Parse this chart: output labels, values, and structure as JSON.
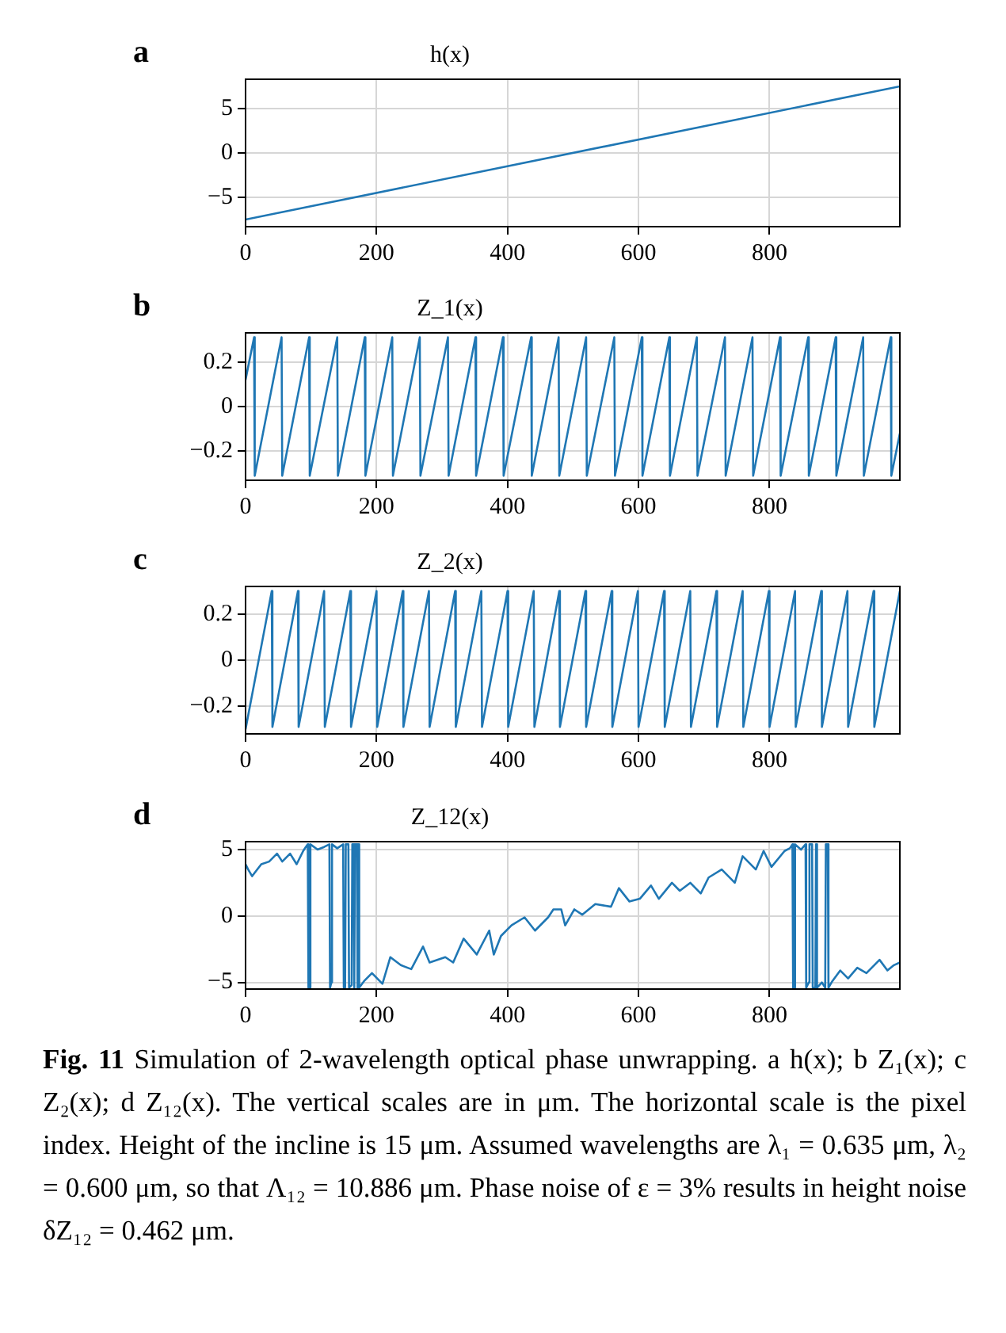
{
  "chart_data": [
    {
      "type": "line",
      "title": "h(x)",
      "annotations": [
        "a"
      ],
      "x": [
        0,
        999
      ],
      "values": [
        -7.5,
        7.5
      ],
      "color": "#1f77b4",
      "marker": "none",
      "xlim": [
        0,
        999
      ],
      "xticks": [
        0,
        200,
        400,
        600,
        800
      ],
      "ylim": [
        -8.3,
        8.3
      ],
      "yticks": [
        -5,
        0,
        5
      ],
      "grid": true
    },
    {
      "type": "line",
      "title": "Z_1(x)",
      "annotations": [
        "b"
      ],
      "x": [
        0,
        13,
        14,
        55,
        56,
        97,
        98,
        140,
        141,
        182,
        183,
        224,
        225,
        266,
        267,
        309,
        310,
        351,
        352,
        393,
        394,
        436,
        437,
        478,
        479,
        520,
        521,
        563,
        564,
        605,
        606,
        647,
        648,
        689,
        690,
        732,
        733,
        774,
        775,
        816,
        817,
        859,
        860,
        901,
        902,
        943,
        944,
        985,
        986,
        999
      ],
      "values": [
        0.12,
        0.31,
        -0.31,
        0.31,
        -0.31,
        0.31,
        -0.31,
        0.31,
        -0.31,
        0.31,
        -0.31,
        0.31,
        -0.31,
        0.31,
        -0.31,
        0.31,
        -0.31,
        0.31,
        -0.31,
        0.31,
        -0.31,
        0.31,
        -0.31,
        0.31,
        -0.31,
        0.31,
        -0.31,
        0.31,
        -0.31,
        0.31,
        -0.31,
        0.31,
        -0.31,
        0.31,
        -0.31,
        0.31,
        -0.31,
        0.31,
        -0.31,
        0.31,
        -0.31,
        0.31,
        -0.31,
        0.31,
        -0.31,
        0.31,
        -0.31,
        0.31,
        -0.31,
        -0.12
      ],
      "color": "#1f77b4",
      "marker": "none",
      "xlim": [
        0,
        999
      ],
      "xticks": [
        0,
        200,
        400,
        600,
        800
      ],
      "ylim": [
        -0.33,
        0.33
      ],
      "yticks": [
        -0.2,
        0,
        0.2
      ],
      "grid": true
    },
    {
      "type": "line",
      "title": "Z_2(x)",
      "annotations": [
        "c"
      ],
      "x": [
        0,
        40,
        41,
        80,
        81,
        120,
        121,
        160,
        161,
        200,
        201,
        240,
        241,
        280,
        281,
        320,
        321,
        360,
        361,
        400,
        401,
        440,
        441,
        479,
        480,
        519,
        520,
        559,
        560,
        599,
        600,
        639,
        640,
        679,
        680,
        719,
        720,
        759,
        760,
        799,
        800,
        839,
        840,
        879,
        880,
        919,
        920,
        959,
        960,
        999
      ],
      "values": [
        -0.3,
        0.3,
        -0.29,
        0.3,
        -0.29,
        0.3,
        -0.29,
        0.3,
        -0.29,
        0.3,
        -0.29,
        0.3,
        -0.29,
        0.3,
        -0.29,
        0.3,
        -0.29,
        0.3,
        -0.29,
        0.3,
        -0.29,
        0.3,
        -0.29,
        0.3,
        -0.29,
        0.3,
        -0.29,
        0.3,
        -0.29,
        0.3,
        -0.29,
        0.3,
        -0.29,
        0.3,
        -0.29,
        0.3,
        -0.29,
        0.3,
        -0.29,
        0.3,
        -0.29,
        0.3,
        -0.29,
        0.3,
        -0.29,
        0.3,
        -0.29,
        0.3,
        -0.29,
        0.3
      ],
      "color": "#1f77b4",
      "marker": "none",
      "xlim": [
        0,
        999
      ],
      "xticks": [
        0,
        200,
        400,
        600,
        800
      ],
      "ylim": [
        -0.32,
        0.32
      ],
      "yticks": [
        -0.2,
        0,
        0.2
      ],
      "grid": true
    },
    {
      "type": "line",
      "title": "Z_12(x)",
      "annotations": [
        "d",
        "Fig. 11",
        "Simulation of 2-wavelength optical phase unwrapping. a h(x); b Z₁(x); c Z₂(x); d Z₁₂(x). The vertical scales are in μm. The horizontal scale is the pixel index. Height of the incline is 15 μm. Assumed wavelengths are λ₁ = 0.635 μm, λ₂ = 0.600 μm, so that Λ₁₂ = 10.886 μm. Phase noise of ε = 3% results in height noise δZ₁₂ = 0.462 μm."
      ],
      "x": [
        0,
        4,
        10,
        24,
        36,
        48,
        56,
        68,
        78,
        88,
        92,
        95,
        96,
        98,
        99,
        110,
        120,
        128,
        129,
        131,
        132,
        140,
        149,
        150,
        152,
        153,
        157,
        158,
        162,
        163,
        165,
        166,
        167,
        170,
        171,
        172,
        173,
        174,
        181,
        193,
        209,
        221,
        237,
        253,
        271,
        281,
        305,
        317,
        333,
        353,
        372,
        379,
        390,
        406,
        426,
        442,
        462,
        470,
        482,
        488,
        502,
        514,
        534,
        558,
        570,
        586,
        602,
        619,
        631,
        651,
        663,
        679,
        695,
        707,
        727,
        747,
        759,
        779,
        791,
        803,
        823,
        831,
        835,
        836,
        838,
        839,
        848,
        855,
        856,
        860,
        861,
        865,
        866,
        870,
        871,
        872,
        873,
        880,
        885,
        886,
        889,
        890,
        896,
        908,
        920,
        934,
        948,
        968,
        980,
        990,
        999
      ],
      "values": [
        3.9,
        3.5,
        3.0,
        3.9,
        4.1,
        4.7,
        4.1,
        4.7,
        3.9,
        4.9,
        5.2,
        5.4,
        -5.4,
        -5.4,
        5.4,
        5.0,
        5.2,
        5.4,
        -5.4,
        -5.0,
        5.4,
        5.1,
        5.4,
        -5.4,
        -5.0,
        5.4,
        5.4,
        -5.4,
        -5.2,
        5.4,
        5.4,
        -5.4,
        5.4,
        5.4,
        -5.4,
        5.4,
        5.4,
        -5.4,
        -4.9,
        -4.3,
        -5.1,
        -3.1,
        -3.7,
        -4.0,
        -2.3,
        -3.5,
        -3.1,
        -3.5,
        -1.7,
        -2.9,
        -1.1,
        -2.9,
        -1.5,
        -0.7,
        -0.1,
        -1.1,
        -0.1,
        0.5,
        0.5,
        -0.7,
        0.5,
        0.1,
        0.9,
        0.7,
        2.1,
        1.1,
        1.3,
        2.3,
        1.3,
        2.5,
        1.9,
        2.5,
        1.7,
        2.9,
        3.5,
        2.5,
        4.5,
        3.5,
        4.9,
        3.7,
        4.9,
        5.1,
        5.4,
        -5.4,
        -5.4,
        5.4,
        5.0,
        5.4,
        -5.4,
        -5.0,
        5.4,
        5.4,
        -5.4,
        -5.4,
        5.4,
        5.4,
        -5.4,
        -5.0,
        -5.4,
        5.4,
        5.4,
        -5.4,
        -4.9,
        -4.1,
        -4.7,
        -3.9,
        -4.3,
        -3.3,
        -4.1,
        -3.7,
        -3.5
      ],
      "color": "#1f77b4",
      "marker": "none",
      "xlim": [
        0,
        999
      ],
      "xticks": [
        0,
        200,
        400,
        600,
        800
      ],
      "ylim": [
        -5.5,
        5.6
      ],
      "yticks": [
        -5,
        0,
        5
      ],
      "grid": true
    }
  ]
}
